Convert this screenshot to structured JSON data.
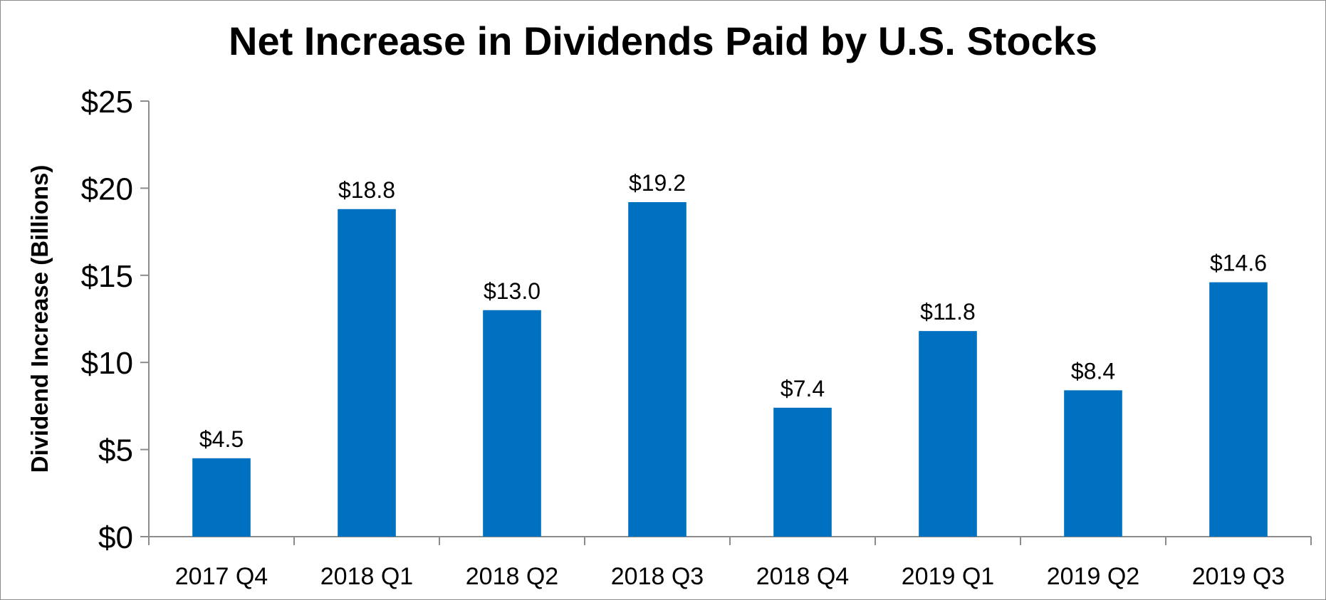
{
  "chart_data": {
    "type": "bar",
    "title": "Net Increase in Dividends Paid by U.S. Stocks",
    "xlabel": "",
    "ylabel": "Dividend Increase (Billions)",
    "categories": [
      "2017 Q4",
      "2018 Q1",
      "2018 Q2",
      "2018 Q3",
      "2018 Q4",
      "2019 Q1",
      "2019 Q2",
      "2019 Q3"
    ],
    "values": [
      4.5,
      18.8,
      13.0,
      19.2,
      7.4,
      11.8,
      8.4,
      14.6
    ],
    "data_labels": [
      "$4.5",
      "$18.8",
      "$13.0",
      "$19.2",
      "$7.4",
      "$11.8",
      "$8.4",
      "$14.6"
    ],
    "ylim": [
      0,
      25
    ],
    "yticks": [
      0,
      5,
      10,
      15,
      20,
      25
    ],
    "ytick_labels": [
      "$0",
      "$5",
      "$10",
      "$15",
      "$20",
      "$25"
    ],
    "grid": false,
    "legend": "none",
    "bar_color": "#0070c0",
    "axis_color": "#8c8c8c"
  }
}
